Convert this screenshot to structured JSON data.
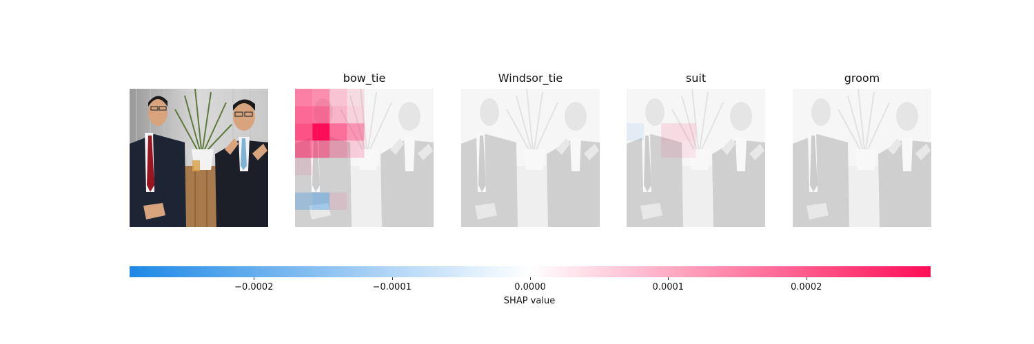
{
  "chart_data": {
    "type": "heatmap",
    "title": "",
    "panels": [
      {
        "title": ""
      },
      {
        "title": "bow_tie"
      },
      {
        "title": "Windsor_tie"
      },
      {
        "title": "suit"
      },
      {
        "title": "groom"
      }
    ],
    "grid_size": 8,
    "shap_values": {
      "bow_tie": [
        [
          0.00014,
          0.00012,
          5e-05,
          2e-05,
          0,
          0,
          0,
          0
        ],
        [
          0.00017,
          0.00016,
          7e-05,
          3e-05,
          0,
          0,
          0,
          0
        ],
        [
          0.0002,
          0.00029,
          0.00016,
          0.00011,
          0,
          0,
          0,
          0
        ],
        [
          0.00015,
          0.00013,
          7e-05,
          4e-05,
          0,
          0,
          0,
          0
        ],
        [
          1e-05,
          0,
          0,
          0,
          0,
          0,
          0,
          0
        ],
        [
          0,
          0,
          0,
          0,
          0,
          0,
          0,
          0
        ],
        [
          -7e-05,
          -9e-05,
          1e-05,
          0,
          0,
          0,
          0,
          0
        ],
        [
          0,
          0,
          0,
          0,
          0,
          0,
          0,
          0
        ]
      ],
      "Windsor_tie": [],
      "suit": [
        [
          0,
          0,
          0,
          0,
          0,
          0,
          0,
          0
        ],
        [
          0,
          0,
          0,
          0,
          0,
          0,
          0,
          0
        ],
        [
          -1e-05,
          0,
          2e-05,
          2e-05,
          0,
          0,
          0,
          0
        ],
        [
          0,
          0,
          1e-05,
          1e-05,
          0,
          0,
          0,
          0
        ],
        [
          0,
          0,
          0,
          0,
          0,
          0,
          0,
          0
        ],
        [
          0,
          0,
          0,
          0,
          0,
          0,
          0,
          0
        ],
        [
          0,
          0,
          0,
          0,
          0,
          0,
          0,
          0
        ],
        [
          0,
          0,
          0,
          0,
          0,
          0,
          0,
          0
        ]
      ],
      "groom": []
    },
    "colorbar": {
      "label": "SHAP value",
      "range": [
        -0.00029,
        0.00029
      ],
      "ticks": [
        -0.0002,
        -0.0001,
        0.0,
        0.0001,
        0.0002
      ],
      "tick_labels": [
        "−0.0002",
        "−0.0001",
        "0.0000",
        "0.0001",
        "0.0002"
      ],
      "colors": {
        "negative": "#1e88e5",
        "zero": "#ffffff",
        "positive": "#ff0d57"
      }
    }
  }
}
